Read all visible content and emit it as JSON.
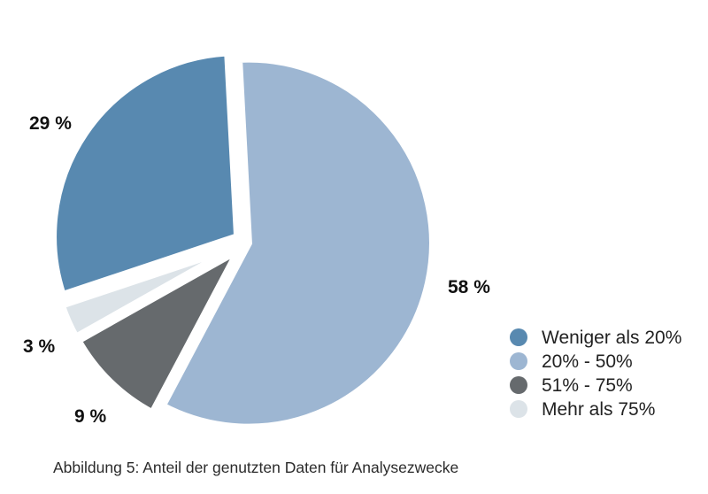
{
  "chart_data": {
    "type": "pie",
    "categories": [
      "Weniger als 20%",
      "20% - 50%",
      "51% - 75%",
      "Mehr als 75%"
    ],
    "values": [
      29,
      58,
      9,
      3
    ],
    "value_labels": [
      "29 %",
      "58 %",
      "9 %",
      "3 %"
    ],
    "colors": [
      "#5889b0",
      "#9db6d2",
      "#666a6d",
      "#dce3e8"
    ],
    "exploded": true,
    "legend": {
      "placement": "bottom-right",
      "entries": [
        "Weniger als 20%",
        "20% - 50%",
        "51% - 75%",
        "Mehr als 75%"
      ]
    }
  },
  "caption": "Abbildung 5: Anteil der genutzten Daten für Analysezwecke"
}
